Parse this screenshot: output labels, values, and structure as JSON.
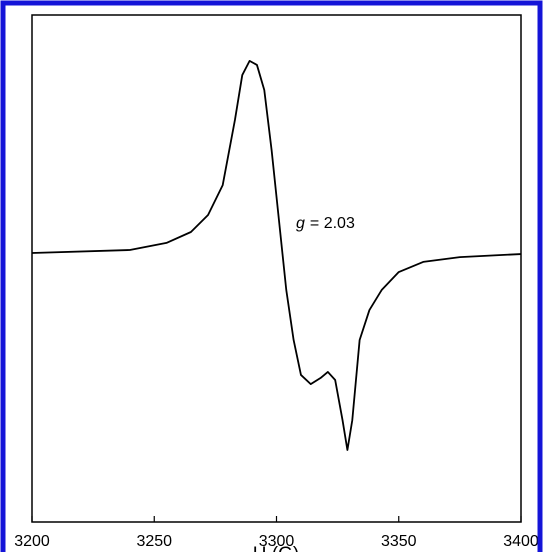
{
  "chart_data": {
    "type": "line",
    "x_label": "H (G)",
    "annotation": {
      "symbol": "g",
      "text": "= 2.03"
    },
    "x": [
      3200,
      3240,
      3255,
      3265,
      3272,
      3278,
      3283,
      3286,
      3289,
      3292,
      3295,
      3298,
      3301,
      3304,
      3307,
      3310,
      3314,
      3318,
      3321,
      3324,
      3327,
      3329,
      3331,
      3334,
      3338,
      3343,
      3350,
      3360,
      3375,
      3400
    ],
    "series": [
      {
        "color": "#000000",
        "values": [
          0.061,
          0.073,
          0.101,
          0.144,
          0.211,
          0.329,
          0.586,
          0.763,
          0.819,
          0.803,
          0.704,
          0.467,
          0.191,
          -0.085,
          -0.282,
          -0.42,
          -0.456,
          -0.432,
          -0.408,
          -0.44,
          -0.598,
          -0.716,
          -0.598,
          -0.282,
          -0.164,
          -0.085,
          -0.014,
          0.026,
          0.045,
          0.057
        ]
      }
    ],
    "xlim": [
      3200,
      3400
    ],
    "xticks": [
      3200,
      3250,
      3300,
      3350,
      3400
    ],
    "ylim": [
      -1,
      1
    ],
    "frame_color": "#1414d8"
  }
}
